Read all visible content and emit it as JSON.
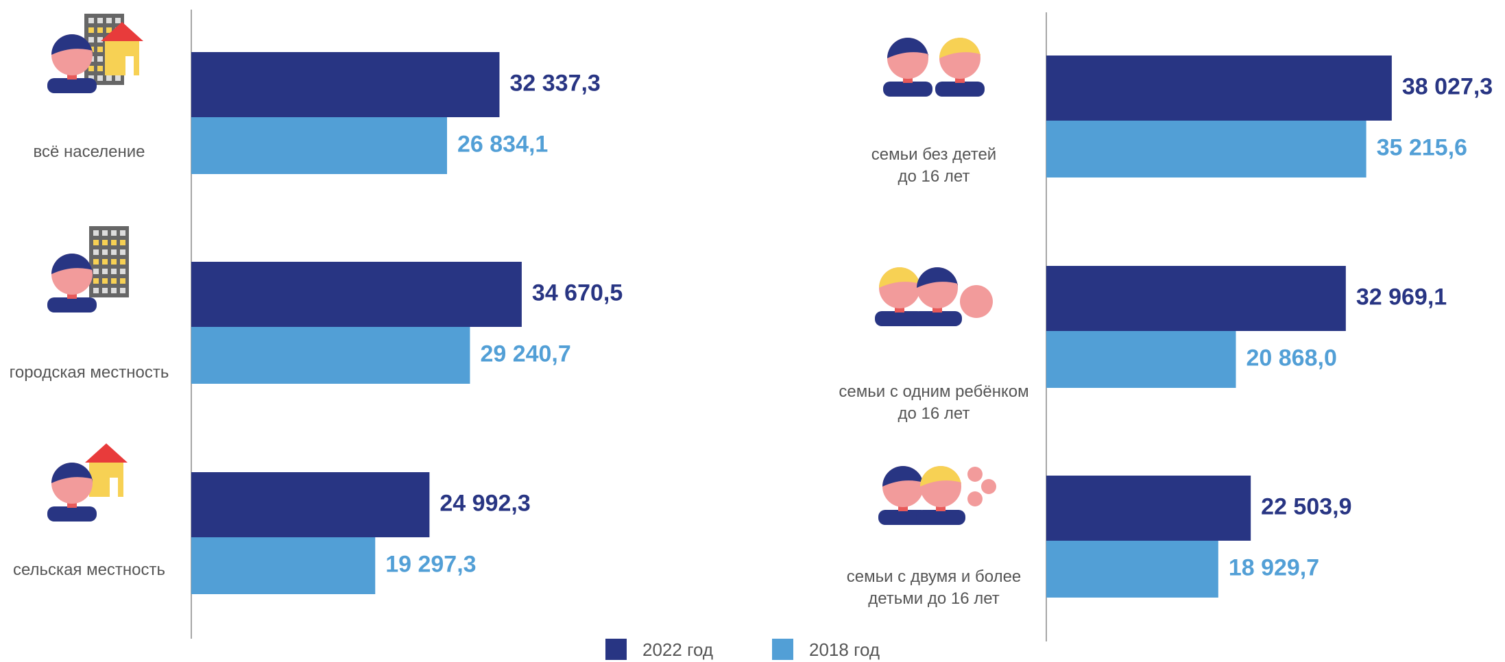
{
  "chart_data": [
    {
      "type": "hbar",
      "categories": [
        "всё население",
        "городская местность",
        "сельская местность"
      ],
      "series": [
        {
          "name": "2022 год",
          "color": "#283583",
          "values": [
            32337.3,
            34670.5,
            24992.3
          ],
          "value_labels": [
            "32 337,3",
            "34 670,5",
            "24 992,3"
          ]
        },
        {
          "name": "2018 год",
          "color": "#529fd6",
          "values": [
            26834.1,
            29240.7,
            19297.3
          ],
          "value_labels": [
            "26 834,1",
            "29 240,7",
            "19 297,3"
          ]
        }
      ],
      "xlim": [
        0,
        40000
      ]
    },
    {
      "type": "hbar",
      "categories": [
        "семьи без детей\nдо 16 лет",
        "семьи с одним ребёнком\nдо 16 лет",
        "семьи с двумя и более\nдетьми до 16 лет"
      ],
      "series": [
        {
          "name": "2022 год",
          "color": "#283583",
          "values": [
            38027.3,
            32969.1,
            22503.9
          ],
          "value_labels": [
            "38 027,3",
            "32 969,1",
            "22 503,9"
          ]
        },
        {
          "name": "2018 год",
          "color": "#529fd6",
          "values": [
            35215.6,
            20868.0,
            18929.7
          ],
          "value_labels": [
            "35 215,6",
            "20 868,0",
            "18 929,7"
          ]
        }
      ],
      "xlim": [
        0,
        40000
      ]
    }
  ]
}
